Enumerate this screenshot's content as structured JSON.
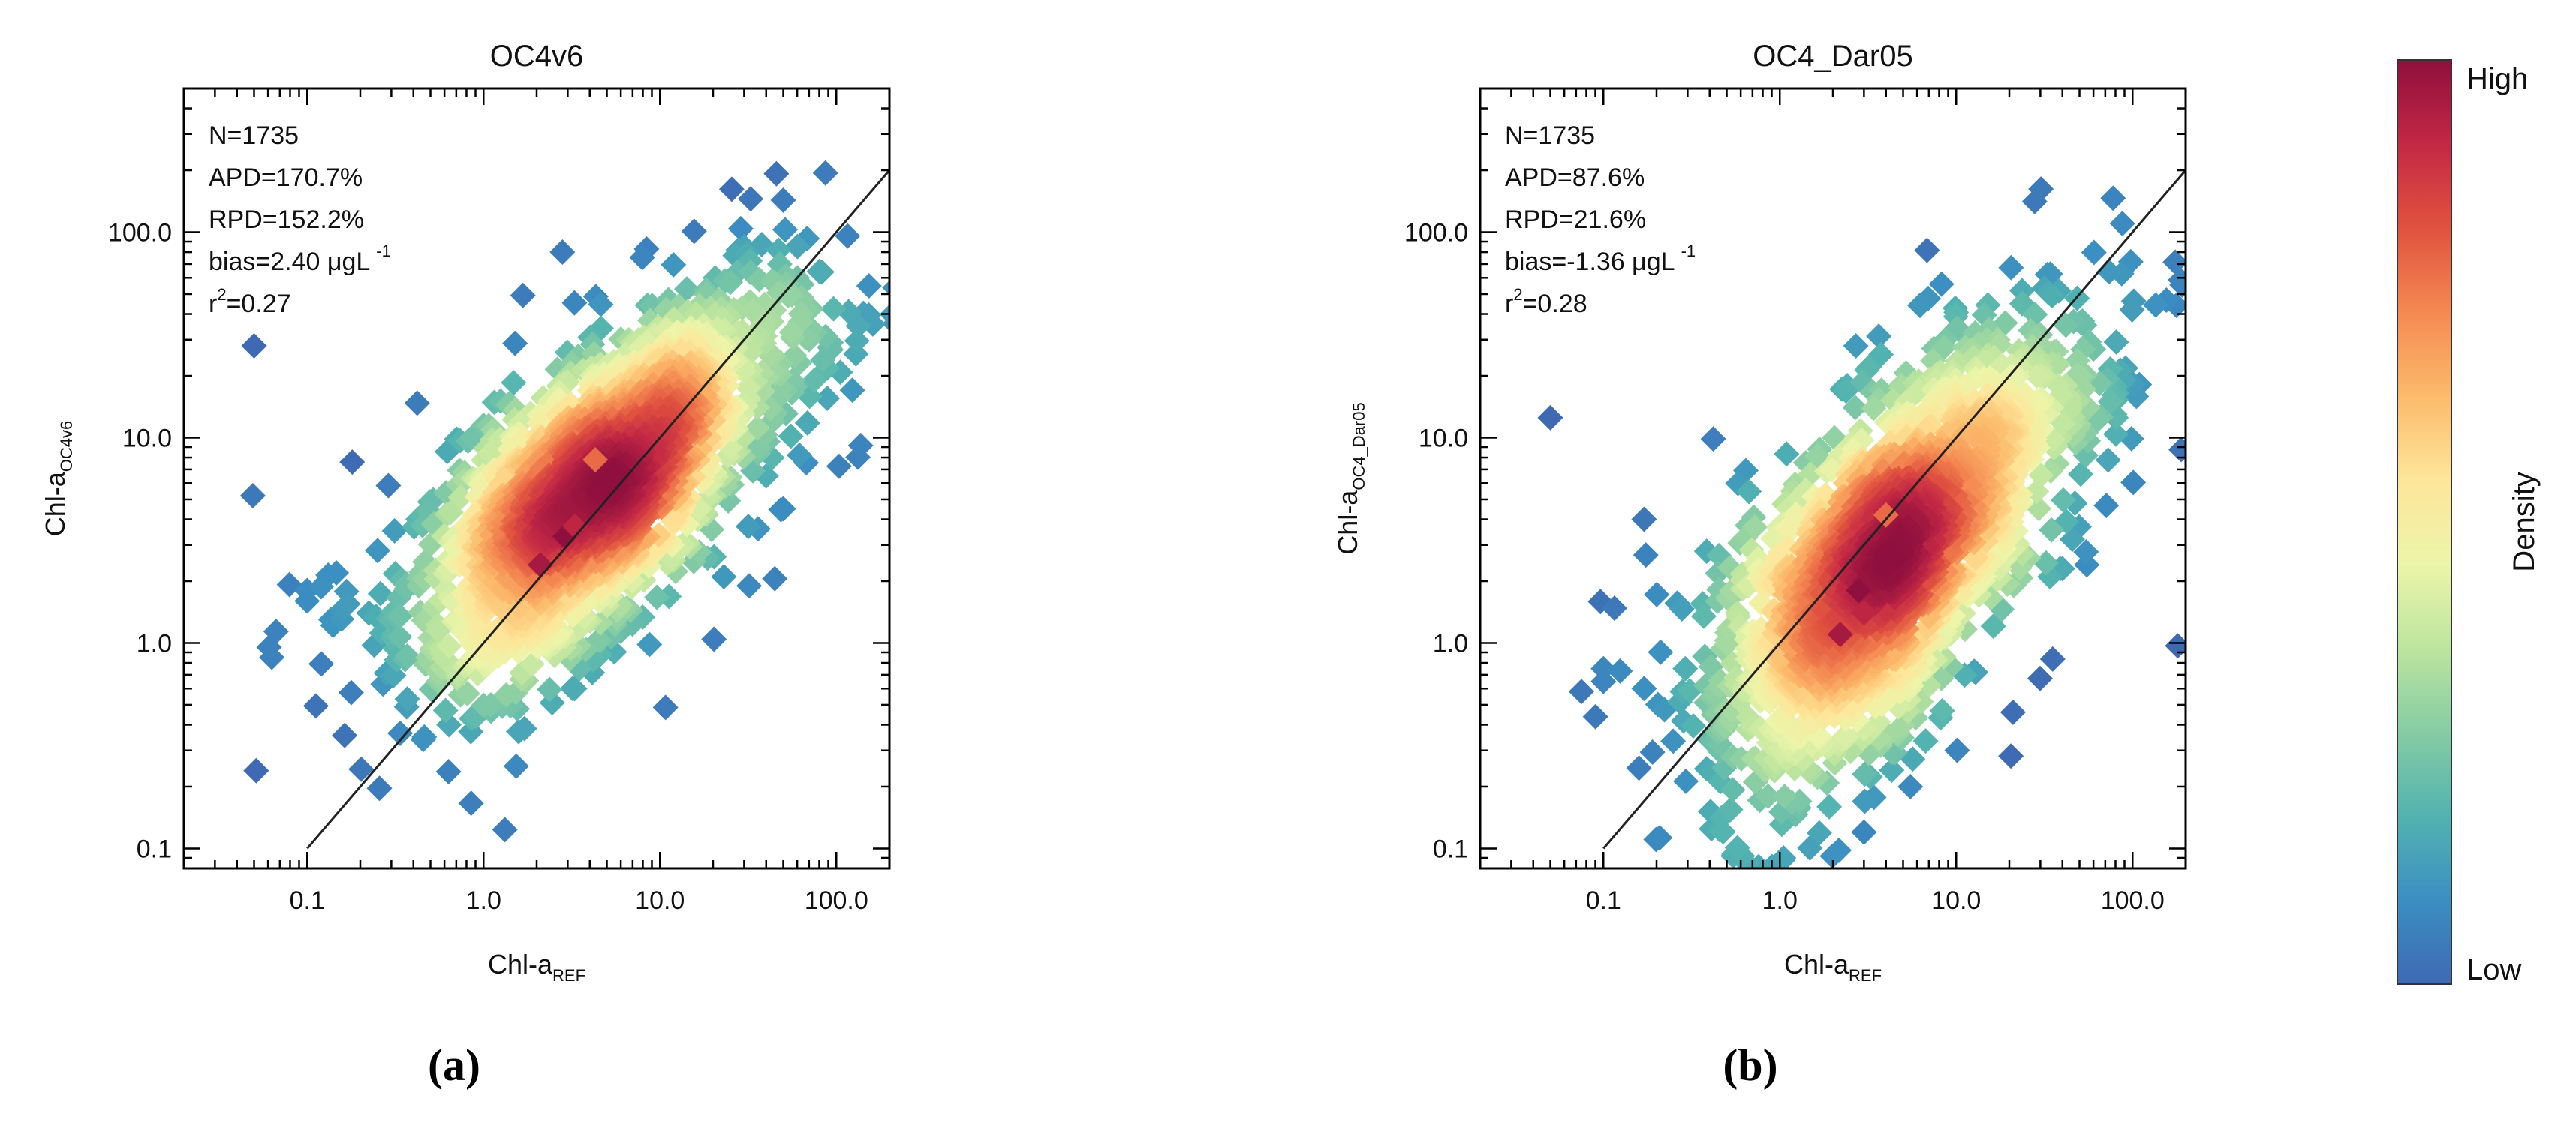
{
  "chart_data": [
    {
      "type": "scatter",
      "title": "OC4v6",
      "panel_label": "(a)",
      "xlabel": "Chl-a",
      "xlabel_sub": "REF",
      "ylabel": "Chl-a",
      "ylabel_sub": "OC4v6",
      "scale": "log",
      "xlim": [
        0.02,
        200
      ],
      "ylim": [
        0.08,
        500
      ],
      "xticks": [
        {
          "v": 0.1,
          "label": "0.1"
        },
        {
          "v": 1,
          "label": "1.0"
        },
        {
          "v": 10,
          "label": "10.0"
        },
        {
          "v": 100,
          "label": "100.0"
        }
      ],
      "yticks": [
        {
          "v": 0.1,
          "label": "0.1"
        },
        {
          "v": 1,
          "label": "1.0"
        },
        {
          "v": 10,
          "label": "10.0"
        },
        {
          "v": 100,
          "label": "100.0"
        }
      ],
      "stats": {
        "n": "N=1735",
        "apd": "APD=170.7%",
        "rpd": "RPD=152.2%",
        "bias": "bias=2.40 μgL",
        "bias_unit_sup": "-1",
        "r2_prefix": "r",
        "r2_sup": "2",
        "r2_value": "=0.27"
      },
      "one_to_one_line": true,
      "density_clusters": [
        {
          "x": 2.3,
          "y": 3.0,
          "sx": 0.42,
          "sy": 0.36,
          "n": 620,
          "rho": 0.45
        },
        {
          "x": 5.0,
          "y": 6.5,
          "sx": 0.4,
          "sy": 0.36,
          "n": 520,
          "rho": 0.55
        },
        {
          "x": 12.0,
          "y": 14.0,
          "sx": 0.38,
          "sy": 0.36,
          "n": 300,
          "rho": 0.5
        },
        {
          "x": 1.3,
          "y": 2.4,
          "sx": 0.55,
          "sy": 0.45,
          "n": 180,
          "rho": 0.3
        },
        {
          "x": 28.0,
          "y": 25.0,
          "sx": 0.5,
          "sy": 0.42,
          "n": 115,
          "rho": 0.4
        }
      ],
      "outlier_points": [
        [
          0.05,
          28
        ],
        [
          0.1,
          1.8
        ],
        [
          0.1,
          1.6
        ],
        [
          0.17,
          1.55
        ],
        [
          0.18,
          7.6
        ],
        [
          1.1,
          0.5
        ],
        [
          3.2,
          0.6
        ],
        [
          2.8,
          80
        ],
        [
          3.5,
          0.75
        ],
        [
          16,
          40
        ],
        [
          30,
          85
        ],
        [
          60,
          60
        ],
        [
          70,
          30
        ],
        [
          50,
          4.5
        ],
        [
          40,
          6.5
        ]
      ],
      "density_hotspots": [
        {
          "x": 2.9,
          "y": 3.3
        },
        {
          "x": 2.1,
          "y": 2.4
        },
        {
          "x": 3.3,
          "y": 3.7
        },
        {
          "x": 4.3,
          "y": 7.8
        }
      ]
    },
    {
      "type": "scatter",
      "title": "OC4_Dar05",
      "panel_label": "(b)",
      "xlabel": "Chl-a",
      "xlabel_sub": "REF",
      "ylabel": "Chl-a",
      "ylabel_sub": "OC4_Dar05",
      "scale": "log",
      "xlim": [
        0.02,
        200
      ],
      "ylim": [
        0.08,
        500
      ],
      "xticks": [
        {
          "v": 0.1,
          "label": "0.1"
        },
        {
          "v": 1,
          "label": "1.0"
        },
        {
          "v": 10,
          "label": "10.0"
        },
        {
          "v": 100,
          "label": "100.0"
        }
      ],
      "yticks": [
        {
          "v": 0.1,
          "label": "0.1"
        },
        {
          "v": 1,
          "label": "1.0"
        },
        {
          "v": 10,
          "label": "10.0"
        },
        {
          "v": 100,
          "label": "100.0"
        }
      ],
      "stats": {
        "n": "N=1735",
        "apd": "APD=87.6%",
        "rpd": "RPD=21.6%",
        "bias": "bias=-1.36 μgL",
        "bias_unit_sup": "-1",
        "r2_prefix": "r",
        "r2_sup": "2",
        "r2_value": "=0.28"
      },
      "one_to_one_line": true,
      "density_clusters": [
        {
          "x": 2.6,
          "y": 1.3,
          "sx": 0.4,
          "sy": 0.42,
          "n": 600,
          "rho": 0.5
        },
        {
          "x": 4.5,
          "y": 3.5,
          "sx": 0.42,
          "sy": 0.4,
          "n": 520,
          "rho": 0.55
        },
        {
          "x": 10.0,
          "y": 8.0,
          "sx": 0.4,
          "sy": 0.38,
          "n": 300,
          "rho": 0.5
        },
        {
          "x": 1.3,
          "y": 0.6,
          "sx": 0.5,
          "sy": 0.5,
          "n": 180,
          "rho": 0.3
        },
        {
          "x": 25.0,
          "y": 15.0,
          "sx": 0.45,
          "sy": 0.4,
          "n": 135,
          "rho": 0.4
        }
      ],
      "outlier_points": [
        [
          0.05,
          12.5
        ],
        [
          0.1,
          0.75
        ],
        [
          0.1,
          0.65
        ],
        [
          0.17,
          0.6
        ],
        [
          0.17,
          4.0
        ],
        [
          1.05,
          0.09
        ],
        [
          3.0,
          0.12
        ],
        [
          2.7,
          28
        ],
        [
          5.5,
          0.2
        ],
        [
          15,
          30
        ],
        [
          30,
          20
        ],
        [
          60,
          27
        ],
        [
          75,
          15
        ],
        [
          40,
          2.3
        ],
        [
          55,
          2.4
        ]
      ],
      "density_hotspots": [
        {
          "x": 2.8,
          "y": 1.8
        },
        {
          "x": 2.2,
          "y": 1.1
        },
        {
          "x": 3.0,
          "y": 1.4
        },
        {
          "x": 4.0,
          "y": 4.2
        }
      ]
    }
  ],
  "colorbar": {
    "title": "Density",
    "high_label": "High",
    "low_label": "Low",
    "colors": [
      "#3f69b3",
      "#3b8fc2",
      "#52b3b0",
      "#86cca4",
      "#bde59f",
      "#ecf5a9",
      "#fde69a",
      "#fcba6b",
      "#f48a52",
      "#e0523f",
      "#c42844",
      "#8f0f3e"
    ]
  }
}
